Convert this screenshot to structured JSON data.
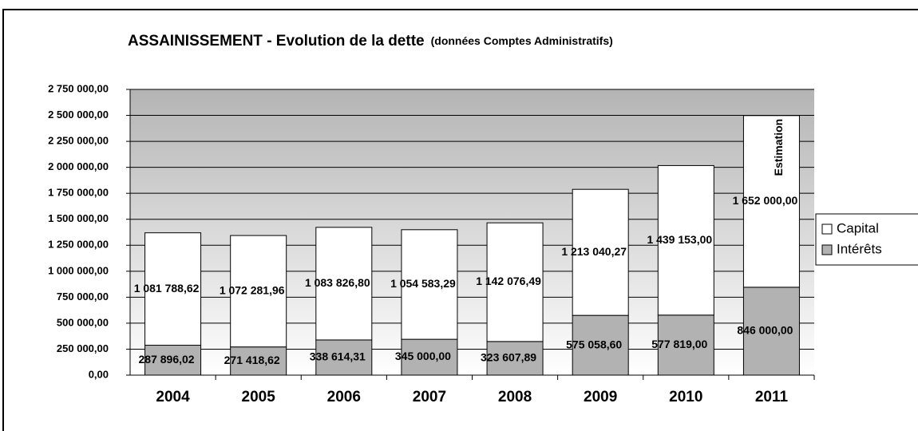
{
  "chart_data": {
    "type": "stacked_bar",
    "title": "ASSAINISSEMENT - Evolution de la dette",
    "subtitle": "(données Comptes Administratifs)",
    "annotation": "Estimation",
    "categories": [
      "2004",
      "2005",
      "2006",
      "2007",
      "2008",
      "2009",
      "2010",
      "2011"
    ],
    "series": [
      {
        "name": "Intérêts",
        "color": "#b2b2b2",
        "values": [
          287896.02,
          271418.62,
          338614.31,
          345000.0,
          323607.89,
          575058.6,
          577819.0,
          846000.0
        ],
        "value_labels": [
          "287 896,02",
          "271 418,62",
          "338 614,31",
          "345 000,00",
          "323 607,89",
          "575 058,60",
          "577 819,00",
          "846 000,00"
        ]
      },
      {
        "name": "Capital",
        "color": "#ffffff",
        "values": [
          1081788.62,
          1072281.96,
          1083826.8,
          1054583.29,
          1142076.49,
          1213040.27,
          1439153.0,
          1652000.0
        ],
        "value_labels": [
          "1 081 788,62",
          "1 072 281,96",
          "1 083 826,80",
          "1 054 583,29",
          "1 142 076,49",
          "1 213 040,27",
          "1 439 153,00",
          "1 652 000,00"
        ]
      }
    ],
    "ylim": [
      0,
      2750000
    ],
    "yticks": [
      {
        "value": 0,
        "label": "0,00"
      },
      {
        "value": 250000,
        "label": "250 000,00"
      },
      {
        "value": 500000,
        "label": "500 000,00"
      },
      {
        "value": 750000,
        "label": "750 000,00"
      },
      {
        "value": 1000000,
        "label": "1 000 000,00"
      },
      {
        "value": 1250000,
        "label": "1 250 000,00"
      },
      {
        "value": 1500000,
        "label": "1 500 000,00"
      },
      {
        "value": 1750000,
        "label": "1 750 000,00"
      },
      {
        "value": 2000000,
        "label": "2 000 000,00"
      },
      {
        "value": 2250000,
        "label": "2 250 000,00"
      },
      {
        "value": 2500000,
        "label": "2 500 000,00"
      },
      {
        "value": 2750000,
        "label": "2 750 000,00"
      }
    ],
    "grid": true,
    "legend": "right"
  }
}
